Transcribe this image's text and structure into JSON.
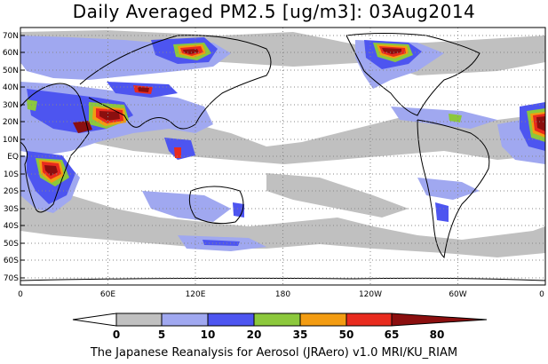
{
  "title": "Daily Averaged PM2.5 [ug/m3]: 03Aug2014",
  "lat_labels": [
    "70N",
    "60N",
    "50N",
    "40N",
    "30N",
    "20N",
    "10N",
    "EQ",
    "10S",
    "20S",
    "30S",
    "40S",
    "50S",
    "60S",
    "70S"
  ],
  "lon_labels": [
    "0",
    "60E",
    "120E",
    "180",
    "120W",
    "60W",
    "0"
  ],
  "colorbar": {
    "labels": [
      "0",
      "5",
      "10",
      "20",
      "35",
      "50",
      "65",
      "80"
    ],
    "colors": [
      "#ffffff",
      "#c0c0c0",
      "#a0a8f0",
      "#4d55f0",
      "#8cc83c",
      "#f39c12",
      "#e82b1e",
      "#8b0f0f"
    ]
  },
  "footer": "The Japanese Reanalysis for Aerosol (JRAero) v1.0 MRI/KU_RIAM"
}
